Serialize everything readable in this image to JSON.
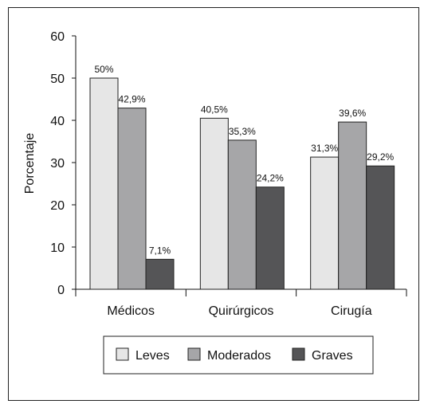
{
  "chart_data": {
    "type": "bar",
    "title": "",
    "xlabel": "",
    "ylabel": "Porcentaje",
    "ylim": [
      0,
      60
    ],
    "yticks": [
      0,
      10,
      20,
      30,
      40,
      50,
      60
    ],
    "grid": false,
    "legend_position": "bottom",
    "categories": [
      "Médicos",
      "Quirúrgicos",
      "Cirugía"
    ],
    "series": [
      {
        "name": "Leves",
        "color": "#e6e6e6",
        "values": [
          50,
          40.5,
          31.3
        ],
        "labels": [
          "50%",
          "40,5%",
          "31,3%"
        ]
      },
      {
        "name": "Moderados",
        "color": "#a6a6a8",
        "values": [
          42.9,
          35.3,
          39.6
        ],
        "labels": [
          "42,9%",
          "35,3%",
          "39,6%"
        ]
      },
      {
        "name": "Graves",
        "color": "#555557",
        "values": [
          7.1,
          24.2,
          29.2
        ],
        "labels": [
          "7,1%",
          "24,2%",
          "29,2%"
        ]
      }
    ]
  }
}
